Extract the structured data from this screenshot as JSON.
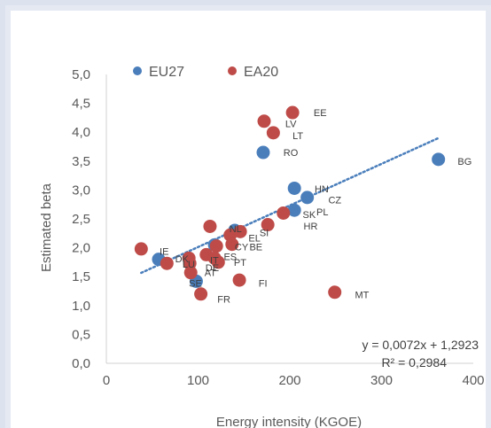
{
  "chart_data": {
    "type": "scatter",
    "title": "",
    "xlabel": "Energy intensity (KGOE)",
    "ylabel": "Estimated beta",
    "xlim": [
      0,
      400
    ],
    "ylim": [
      0,
      5
    ],
    "x_ticks": [
      "0",
      "100",
      "200",
      "300",
      "400"
    ],
    "y_ticks": [
      "0,0",
      "0,5",
      "1,0",
      "1,5",
      "2,0",
      "2,5",
      "3,0",
      "3,5",
      "4,0",
      "4,5",
      "5,0"
    ],
    "grid": false,
    "legend_position": "top",
    "series": [
      {
        "name": "EU27",
        "color": "#4a7ebb",
        "points": [
          {
            "x": 57,
            "y": 1.8
          },
          {
            "x": 98,
            "y": 1.42
          },
          {
            "x": 118,
            "y": 2.05
          },
          {
            "x": 140,
            "y": 2.3
          },
          {
            "x": 171,
            "y": 3.65
          },
          {
            "x": 205,
            "y": 3.03
          },
          {
            "x": 205,
            "y": 2.65
          },
          {
            "x": 219,
            "y": 2.87
          },
          {
            "x": 362,
            "y": 3.53
          }
        ]
      },
      {
        "name": "EA20",
        "color": "#be4b48",
        "points": [
          {
            "x": 38,
            "y": 1.98,
            "label": "IE"
          },
          {
            "x": 66,
            "y": 1.73,
            "label": "DK"
          },
          {
            "x": 90,
            "y": 1.82,
            "label": "LU"
          },
          {
            "x": 92,
            "y": 1.57,
            "label": "AT"
          },
          {
            "x": 91,
            "y": 1.73,
            "label": "DE"
          },
          {
            "x": 103,
            "y": 1.2,
            "label": "FR"
          },
          {
            "x": 109,
            "y": 1.88,
            "label": "ES"
          },
          {
            "x": 113,
            "y": 2.37,
            "label": "NL"
          },
          {
            "x": 120,
            "y": 2.03,
            "label": "CY"
          },
          {
            "x": 118,
            "y": 1.82,
            "label": "IT"
          },
          {
            "x": 122,
            "y": 1.75,
            "label": "PT"
          },
          {
            "x": 135,
            "y": 2.22,
            "label": "EL"
          },
          {
            "x": 137,
            "y": 2.06,
            "label": "BE"
          },
          {
            "x": 146,
            "y": 2.28,
            "label": "SI"
          },
          {
            "x": 145,
            "y": 1.44,
            "label": "FI"
          },
          {
            "x": 176,
            "y": 2.4,
            "label": "SK"
          },
          {
            "x": 193,
            "y": 2.6,
            "label": "HR"
          },
          {
            "x": 172,
            "y": 4.19,
            "label": "LV"
          },
          {
            "x": 182,
            "y": 3.99,
            "label": "LT"
          },
          {
            "x": 203,
            "y": 4.34,
            "label": "EE"
          },
          {
            "x": 249,
            "y": 1.23,
            "label": "MT"
          }
        ]
      }
    ],
    "labels_placed": [
      {
        "text": "EE",
        "x": 226,
        "y": 4.34
      },
      {
        "text": "LV",
        "x": 195,
        "y": 4.15
      },
      {
        "text": "LT",
        "x": 203,
        "y": 3.94
      },
      {
        "text": "RO",
        "x": 193,
        "y": 3.65
      },
      {
        "text": "BG",
        "x": 383,
        "y": 3.5
      },
      {
        "text": "HN",
        "x": 227,
        "y": 3.02
      },
      {
        "text": "CZ",
        "x": 242,
        "y": 2.83
      },
      {
        "text": "PL",
        "x": 229,
        "y": 2.62
      },
      {
        "text": "SK",
        "x": 214,
        "y": 2.58
      },
      {
        "text": "HR",
        "x": 215,
        "y": 2.38
      },
      {
        "text": "NL",
        "x": 134,
        "y": 2.33
      },
      {
        "text": "SI",
        "x": 167,
        "y": 2.26
      },
      {
        "text": "EL",
        "x": 155,
        "y": 2.17
      },
      {
        "text": "CY",
        "x": 140,
        "y": 2.02
      },
      {
        "text": "BE",
        "x": 156,
        "y": 2.02
      },
      {
        "text": "IE",
        "x": 58,
        "y": 1.94
      },
      {
        "text": "DK",
        "x": 75,
        "y": 1.81
      },
      {
        "text": "ES",
        "x": 128,
        "y": 1.85
      },
      {
        "text": "LU",
        "x": 83,
        "y": 1.72
      },
      {
        "text": "IT",
        "x": 113,
        "y": 1.79
      },
      {
        "text": "DE",
        "x": 108,
        "y": 1.66
      },
      {
        "text": "PT",
        "x": 139,
        "y": 1.75
      },
      {
        "text": "AT",
        "x": 107,
        "y": 1.57
      },
      {
        "text": "SE",
        "x": 90,
        "y": 1.39
      },
      {
        "text": "FI",
        "x": 166,
        "y": 1.39
      },
      {
        "text": "MT",
        "x": 271,
        "y": 1.19
      },
      {
        "text": "FR",
        "x": 121,
        "y": 1.11
      }
    ],
    "trendline": {
      "style": "dotted",
      "color": "#4a7ebb",
      "slope": 0.0072,
      "intercept": 1.2923,
      "x_range": [
        38,
        362
      ],
      "equation": "y = 0,0072x + 1,2923",
      "r_squared": "R² = 0,2984"
    }
  }
}
